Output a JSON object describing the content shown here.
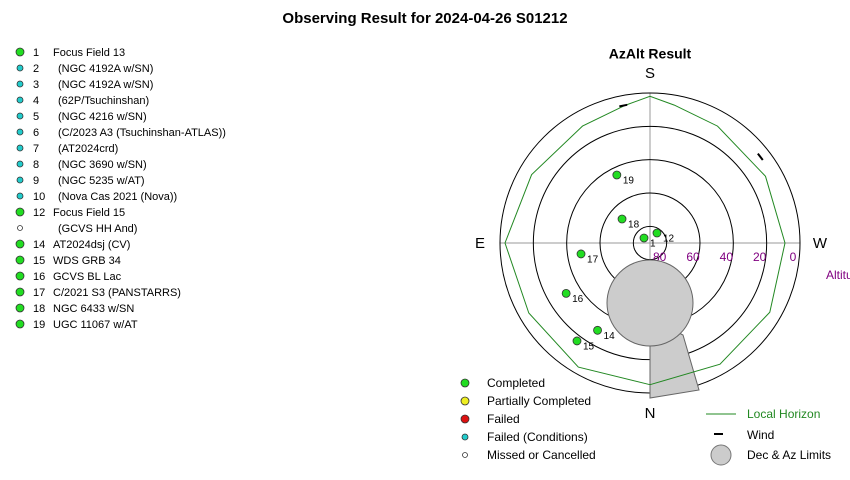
{
  "title": "Observing Result for 2024-04-26 S01212",
  "target_list": [
    {
      "number": "1",
      "name": "Focus Field 13",
      "status": 0
    },
    {
      "number": "2",
      "name": "(NGC 4192A w/SN)",
      "status": 3
    },
    {
      "number": "3",
      "name": "(NGC 4192A w/SN)",
      "status": 3
    },
    {
      "number": "4",
      "name": "(62P/Tsuchinshan)",
      "status": 3
    },
    {
      "number": "5",
      "name": "(NGC 4216 w/SN)",
      "status": 3
    },
    {
      "number": "6",
      "name": "(C/2023 A3 (Tsuchinshan-ATLAS))",
      "status": 3
    },
    {
      "number": "7",
      "name": "(AT2024crd)",
      "status": 3
    },
    {
      "number": "8",
      "name": "(NGC 3690 w/SN)",
      "status": 3
    },
    {
      "number": "9",
      "name": "(NGC 5235 w/AT)",
      "status": 3
    },
    {
      "number": "10",
      "name": "(Nova Cas 2021 (Nova))",
      "status": 3
    },
    {
      "number": "12",
      "name": "Focus Field 15",
      "status": 0
    },
    {
      "number": null,
      "name": "(GCVS HH And)",
      "status": 4
    },
    {
      "number": "14",
      "name": "AT2024dsj (CV)",
      "status": 0
    },
    {
      "number": "15",
      "name": "WDS GRB 34",
      "status": 0
    },
    {
      "number": "16",
      "name": "GCVS BL Lac",
      "status": 0
    },
    {
      "number": "17",
      "name": "C/2021 S3 (PANSTARRS)",
      "status": 0
    },
    {
      "number": "18",
      "name": "NGC 6433 w/SN",
      "status": 0
    },
    {
      "number": "19",
      "name": "UGC 11067 w/AT",
      "status": 0
    }
  ],
  "chart_data": {
    "type": "polar",
    "title": "AzAlt Result",
    "radial_label": "Altitude",
    "rlim": [
      0,
      90
    ],
    "rticks": [
      0,
      20,
      40,
      60,
      80
    ],
    "directions": [
      {
        "label": "S",
        "az": 180
      },
      {
        "label": "W",
        "az": 270
      },
      {
        "label": "N",
        "az": 0
      },
      {
        "label": "E",
        "az": 90
      }
    ],
    "points": [
      {
        "label": "19",
        "az": 154,
        "alt": 44.6,
        "status": 0
      },
      {
        "label": "18",
        "az": 130.6,
        "alt": 67.9,
        "status": 0
      },
      {
        "label": "12",
        "az": 215,
        "alt": 82.7,
        "status": 0
      },
      {
        "label": "1",
        "az": 130,
        "alt": 85.3,
        "status": 0
      },
      {
        "label": "17",
        "az": 81,
        "alt": 48.1,
        "status": 0
      },
      {
        "label": "16",
        "az": 59,
        "alt": 31.3,
        "status": 0
      },
      {
        "label": "14",
        "az": 31,
        "alt": 28.9,
        "status": 0
      },
      {
        "label": "15",
        "az": 36.7,
        "alt": 16.7,
        "status": 0
      }
    ],
    "status_legend": [
      {
        "name": "Completed",
        "color": "#22dd22"
      },
      {
        "name": "Partially Completed",
        "color": "#eeee22"
      },
      {
        "name": "Failed",
        "color": "#dd1111"
      },
      {
        "name": "Failed (Conditions)",
        "color": "#22cccc"
      },
      {
        "name": "Missed or Cancelled",
        "color": "#ffffff"
      }
    ],
    "horizon": {
      "name": "Local Horizon",
      "color": "#228822",
      "az": [
        0,
        30,
        60,
        90,
        120,
        150,
        170,
        180,
        190,
        210,
        240,
        270,
        300,
        330,
        360
      ],
      "alt": [
        5,
        4,
        6,
        3,
        8,
        9,
        6,
        2,
        6,
        9,
        10,
        9,
        7,
        6,
        5
      ]
    },
    "wind": {
      "name": "Wind",
      "az": [
        169,
        232
      ]
    },
    "limits_label": "Dec & Az Limits"
  }
}
